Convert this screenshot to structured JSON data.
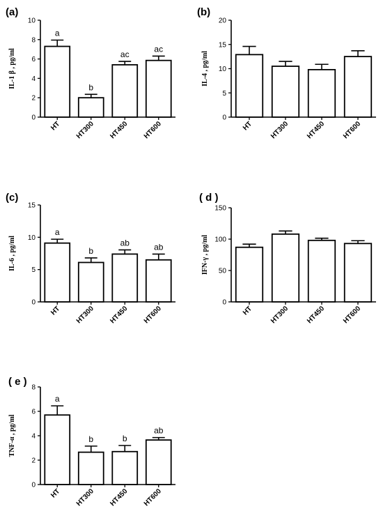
{
  "chart_data": [
    {
      "panel_label": "(a)",
      "type": "bar",
      "ylabel": "IL-1 β , pg/ml",
      "categories": [
        "HT",
        "HT300",
        "HT450",
        "HT600"
      ],
      "values": [
        7.3,
        2.0,
        5.4,
        5.85
      ],
      "errors": [
        0.65,
        0.35,
        0.35,
        0.45
      ],
      "significance": [
        "a",
        "b",
        "ac",
        "ac"
      ],
      "ylim": [
        0,
        10
      ],
      "yticks": [
        0,
        2,
        4,
        6,
        8,
        10
      ]
    },
    {
      "panel_label": "(b)",
      "type": "bar",
      "ylabel": "IL-4 , pg/ml",
      "categories": [
        "HT",
        "HT300",
        "HT450",
        "HT600"
      ],
      "values": [
        12.9,
        10.5,
        9.8,
        12.5
      ],
      "errors": [
        1.7,
        1.0,
        1.1,
        1.2
      ],
      "significance": [
        "",
        "",
        "",
        ""
      ],
      "ylim": [
        0,
        20
      ],
      "yticks": [
        0,
        5,
        10,
        15,
        20
      ]
    },
    {
      "panel_label": "(c)",
      "type": "bar",
      "ylabel": "IL-6 , pg/ml",
      "categories": [
        "HT",
        "HT300",
        "HT450",
        "HT600"
      ],
      "values": [
        9.1,
        6.1,
        7.4,
        6.5
      ],
      "errors": [
        0.6,
        0.7,
        0.65,
        0.9
      ],
      "significance": [
        "a",
        "b",
        "ab",
        "ab"
      ],
      "ylim": [
        0,
        15
      ],
      "yticks": [
        0,
        5,
        10,
        15
      ]
    },
    {
      "panel_label": "( d )",
      "type": "bar",
      "ylabel": "IFN-γ , pg/ml",
      "categories": [
        "HT",
        "HT300",
        "HT450",
        "HT600"
      ],
      "values": [
        87,
        108,
        98,
        93
      ],
      "errors": [
        5,
        5,
        3.5,
        4.5
      ],
      "significance": [
        "",
        "",
        "",
        ""
      ],
      "ylim": [
        0,
        150
      ],
      "yticks": [
        0,
        50,
        100,
        150
      ]
    },
    {
      "panel_label": "( e )",
      "type": "bar",
      "ylabel": "TNF-α , pg/ml",
      "categories": [
        "HT",
        "HT300",
        "HT450",
        "HT600"
      ],
      "values": [
        5.7,
        2.65,
        2.7,
        3.65
      ],
      "errors": [
        0.75,
        0.5,
        0.5,
        0.2
      ],
      "significance": [
        "a",
        "b",
        "b",
        "ab"
      ],
      "ylim": [
        0,
        8
      ],
      "yticks": [
        0,
        2,
        4,
        6,
        8
      ]
    }
  ]
}
